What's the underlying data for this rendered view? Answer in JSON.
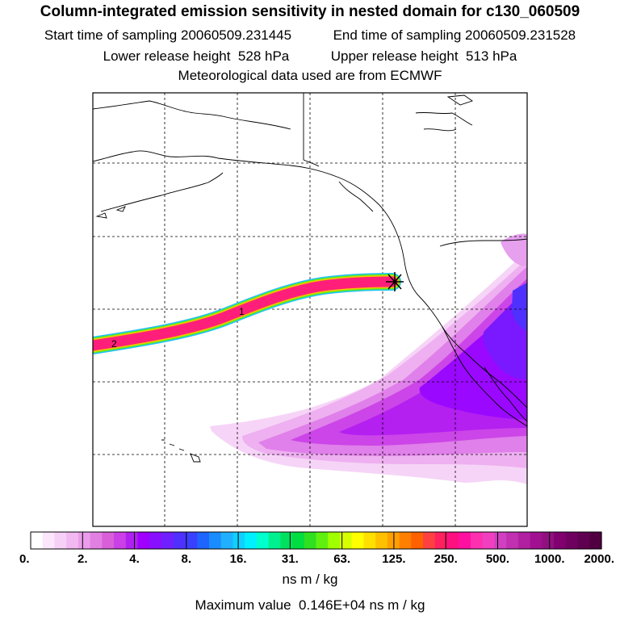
{
  "header": {
    "title": "Column-integrated emission sensitivity in nested domain for c130_060509",
    "start_label": "Start time of sampling",
    "start_value": "20060509.231445",
    "end_label": "End time of sampling",
    "end_value": "20060509.231528",
    "lower_label": "Lower release height",
    "lower_value": "528 hPa",
    "upper_label": "Upper release height",
    "upper_value": "513 hPa",
    "met_line": "Meteorological data used are from ECMWF"
  },
  "map": {
    "trajectory_labels": [
      "1",
      "2"
    ]
  },
  "colorbar": {
    "tick_labels": [
      "0.",
      "2.",
      "4.",
      "8.",
      "16.",
      "31.",
      "63.",
      "125.",
      "250.",
      "500.",
      "1000.",
      "2000."
    ],
    "colors": [
      "#ffffff",
      "#fbe6fb",
      "#f7d0f7",
      "#f2b8f2",
      "#eb9deb",
      "#e27fe2",
      "#d85fd8",
      "#cb3fe6",
      "#b020f0",
      "#9f00ff",
      "#8810ff",
      "#7020ff",
      "#5030ff",
      "#3a40ff",
      "#1e64ff",
      "#1a8cff",
      "#20b0ff",
      "#10d0ff",
      "#00f0ff",
      "#00ffcc",
      "#00f090",
      "#00e060",
      "#00dd40",
      "#30e020",
      "#60f010",
      "#a0ff00",
      "#d8ff00",
      "#ffff00",
      "#ffe000",
      "#ffc000",
      "#ffa000",
      "#ff8000",
      "#ff6000",
      "#ff4040",
      "#ff2060",
      "#ff1080",
      "#ff10a0",
      "#ff30b0",
      "#f040c0",
      "#d040c0",
      "#c030b0",
      "#b020a0",
      "#a01090",
      "#901080",
      "#800070",
      "#700060",
      "#600050",
      "#500040"
    ],
    "units": "ns m / kg",
    "max_label": "Maximum value",
    "max_value": "0.146E+04 ns m / kg"
  }
}
